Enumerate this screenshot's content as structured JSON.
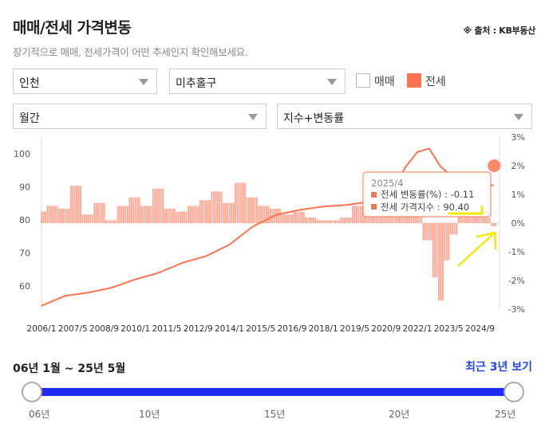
{
  "header": {
    "title": "매매/전세 가격변동",
    "source": "※ 출처 : KB부동산",
    "subtitle": "장기적으로 매매, 전세가격이 어떤 추세인지 확인해보세요."
  },
  "filters": {
    "region": "인천",
    "district": "미추홀구",
    "period": "월간",
    "metric": "지수+변동률",
    "checkbox_sale": "매매",
    "checkbox_jeonse": "전세",
    "sale_checked": false,
    "jeonse_checked": true
  },
  "colors": {
    "accent": "#ff7350",
    "bars": "#ffab98",
    "slider": "#1e2bf0",
    "link": "#2545f0"
  },
  "chart_data": {
    "type": "line",
    "x_ticks": [
      "2006/1",
      "2007/5",
      "2008/9",
      "2010/1",
      "2011/5",
      "2012/9",
      "2014/1",
      "2015/5",
      "2016/9",
      "2018/1",
      "2019/5",
      "2020/9",
      "2022/1",
      "2023/5",
      "2024/9"
    ],
    "y_left_ticks": [
      "100",
      "90",
      "80",
      "70",
      "60"
    ],
    "y_left_range": [
      53,
      105
    ],
    "y_right_ticks": [
      "3%",
      "2%",
      "1%",
      "0%",
      "-1%",
      "-2%",
      "-3%"
    ],
    "y_right_range": [
      -3,
      3
    ],
    "series": [
      {
        "name": "전세 가격지수",
        "axis": "left",
        "x": [
          2006.0,
          2007.0,
          2008.0,
          2009.0,
          2010.0,
          2011.0,
          2012.0,
          2013.0,
          2014.0,
          2015.0,
          2016.0,
          2017.0,
          2018.0,
          2019.0,
          2020.0,
          2021.0,
          2021.5,
          2022.0,
          2022.5,
          2023.0,
          2023.5,
          2024.0,
          2024.5,
          2025.25
        ],
        "values": [
          54.0,
          57.0,
          58.0,
          59.5,
          62.0,
          64.0,
          67.0,
          69.0,
          72.5,
          78.0,
          81.5,
          83.0,
          84.0,
          84.5,
          85.5,
          90.0,
          96.0,
          100.5,
          101.5,
          96.0,
          93.0,
          92.0,
          90.8,
          90.4
        ]
      },
      {
        "name": "전세 변동률(%)",
        "axis": "right",
        "type": "bar",
        "x": [
          2006.0,
          2006.5,
          2007.0,
          2007.5,
          2008.0,
          2008.5,
          2009.0,
          2009.5,
          2010.0,
          2010.5,
          2011.0,
          2011.5,
          2012.0,
          2012.5,
          2013.0,
          2013.5,
          2014.0,
          2014.5,
          2015.0,
          2015.5,
          2016.0,
          2016.5,
          2017.0,
          2017.5,
          2018.0,
          2018.5,
          2019.0,
          2019.5,
          2020.0,
          2020.5,
          2021.0,
          2021.5,
          2022.0,
          2022.5,
          2022.75,
          2023.0,
          2023.25,
          2023.5,
          2024.0,
          2024.5,
          2025.0,
          2025.25
        ],
        "values": [
          0.4,
          0.6,
          0.5,
          1.3,
          0.3,
          0.7,
          0.1,
          0.6,
          0.9,
          0.6,
          1.2,
          0.5,
          0.4,
          0.6,
          0.8,
          1.1,
          0.7,
          1.4,
          0.9,
          0.6,
          0.5,
          0.3,
          0.4,
          0.2,
          0.1,
          0.1,
          0.2,
          0.6,
          0.8,
          1.0,
          1.2,
          1.3,
          0.8,
          -0.6,
          -1.9,
          -2.7,
          -1.3,
          -0.4,
          0.4,
          0.3,
          0.2,
          -0.11
        ]
      }
    ],
    "tooltip": {
      "date": "2025/4",
      "rate_label": "전세 변동률(%) :",
      "rate_value": "-0.11",
      "index_label": "전세 가격지수 :",
      "index_value": "90.40"
    }
  },
  "range": {
    "label": "06년 1월 ~ 25년 5월",
    "recent_button": "최근 3년 보기",
    "ticks": [
      "06년",
      "10년",
      "15년",
      "20년",
      "25년"
    ]
  }
}
